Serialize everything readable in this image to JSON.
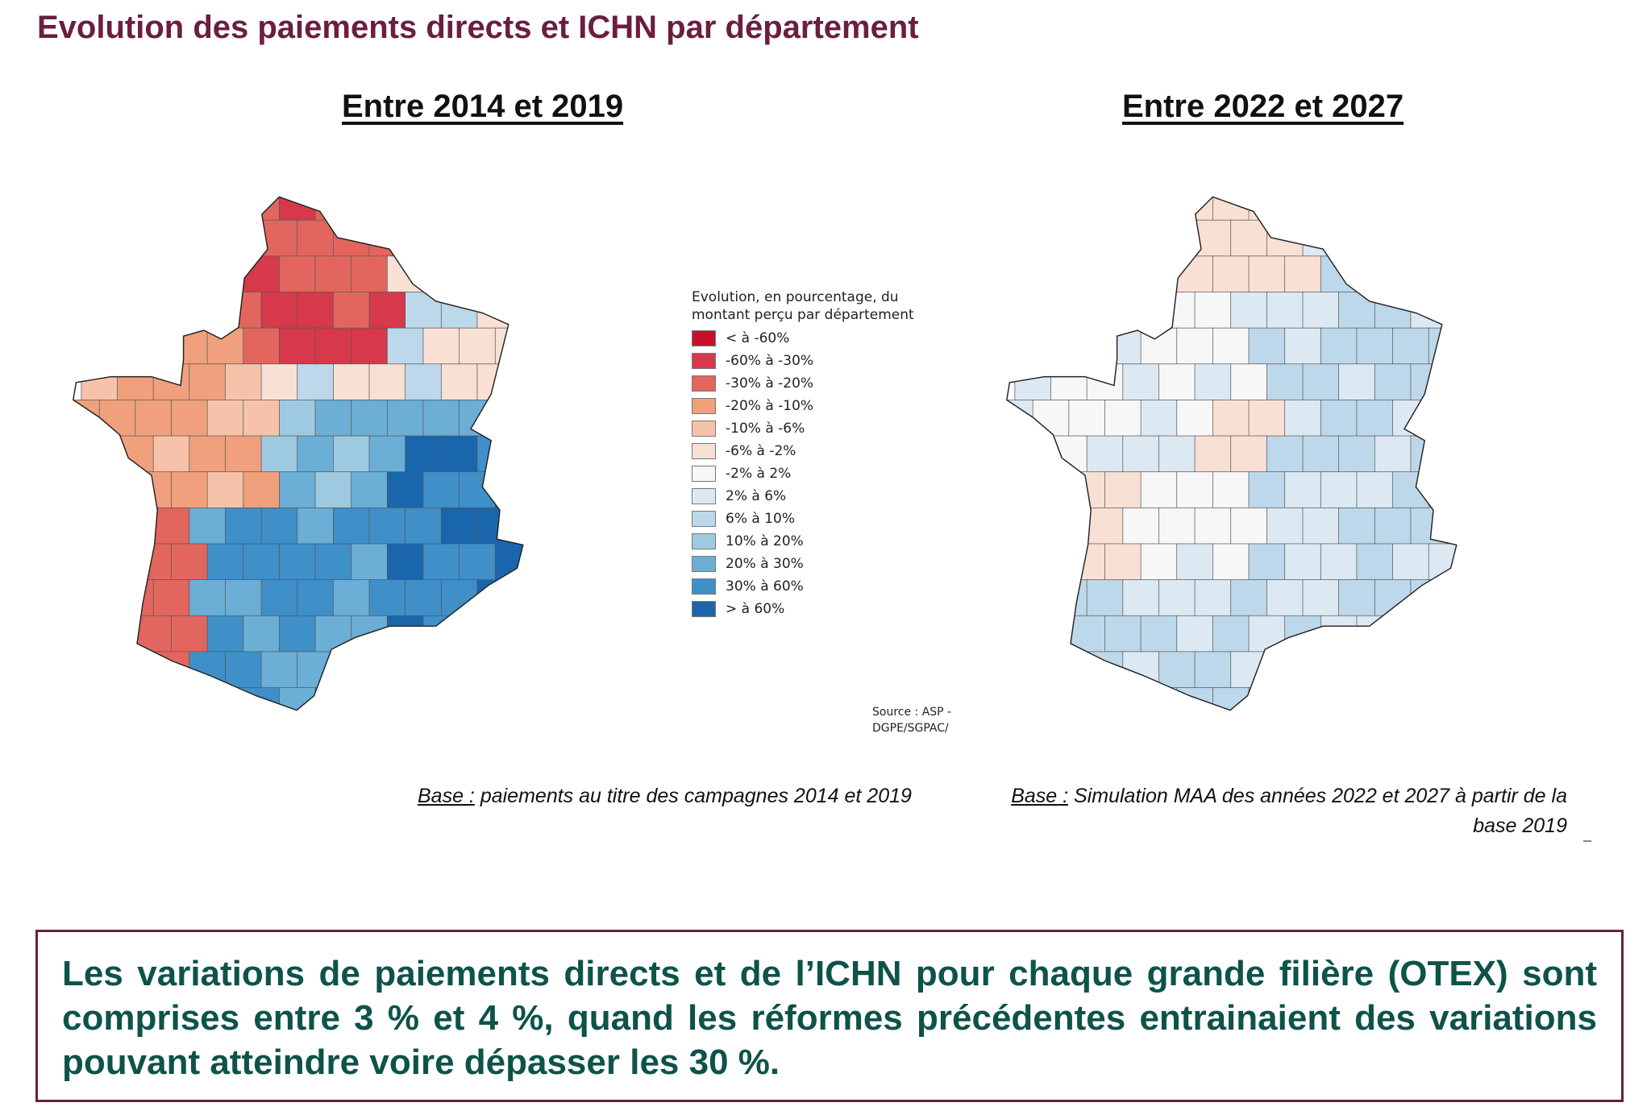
{
  "page": {
    "title": "Evolution des paiements directs et ICHN par département"
  },
  "maps": [
    {
      "title": "Entre 2014 et 2019",
      "base_label": "Base :",
      "base_text": " paiements au titre des campagnes 2014 et 2019"
    },
    {
      "title": "Entre 2022 et 2027",
      "base_label": "Base :",
      "base_text": " Simulation MAA des années 2022 et 2027 à partir de la base 2019"
    }
  ],
  "legend": {
    "title": "Evolution, en pourcentage, du montant perçu par département",
    "items": [
      {
        "label": "< à -60%",
        "color": "#c8102e"
      },
      {
        "label": "-60% à -30%",
        "color": "#d6394a"
      },
      {
        "label": "-30% à -20%",
        "color": "#e2665e"
      },
      {
        "label": "-20% à -10%",
        "color": "#f0a07c"
      },
      {
        "label": "-10% à -6%",
        "color": "#f6c3aa"
      },
      {
        "label": "-6% à -2%",
        "color": "#f9e0d5"
      },
      {
        "label": "-2% à 2%",
        "color": "#f7f7f7"
      },
      {
        "label": "2% à 6%",
        "color": "#dce9f3"
      },
      {
        "label": "6% à 10%",
        "color": "#bdd8ea"
      },
      {
        "label": "10% à 20%",
        "color": "#9ecae1"
      },
      {
        "label": "20% à 30%",
        "color": "#6baed6"
      },
      {
        "label": "30% à 60%",
        "color": "#3f8fc9"
      },
      {
        "label": "> à 60%",
        "color": "#1a66ad"
      }
    ]
  },
  "source": {
    "line1": "Source : ASP -",
    "line2": "DGPE/SGPAC/"
  },
  "conclusion": {
    "text": "Les variations de paiements directs et de l’ICHN pour chaque grande filière (OTEX) sont comprises entre 3 % et 4 %, quand les réformes précédentes entrainaient des variations pouvant atteindre voire dépasser les 30 %."
  }
}
